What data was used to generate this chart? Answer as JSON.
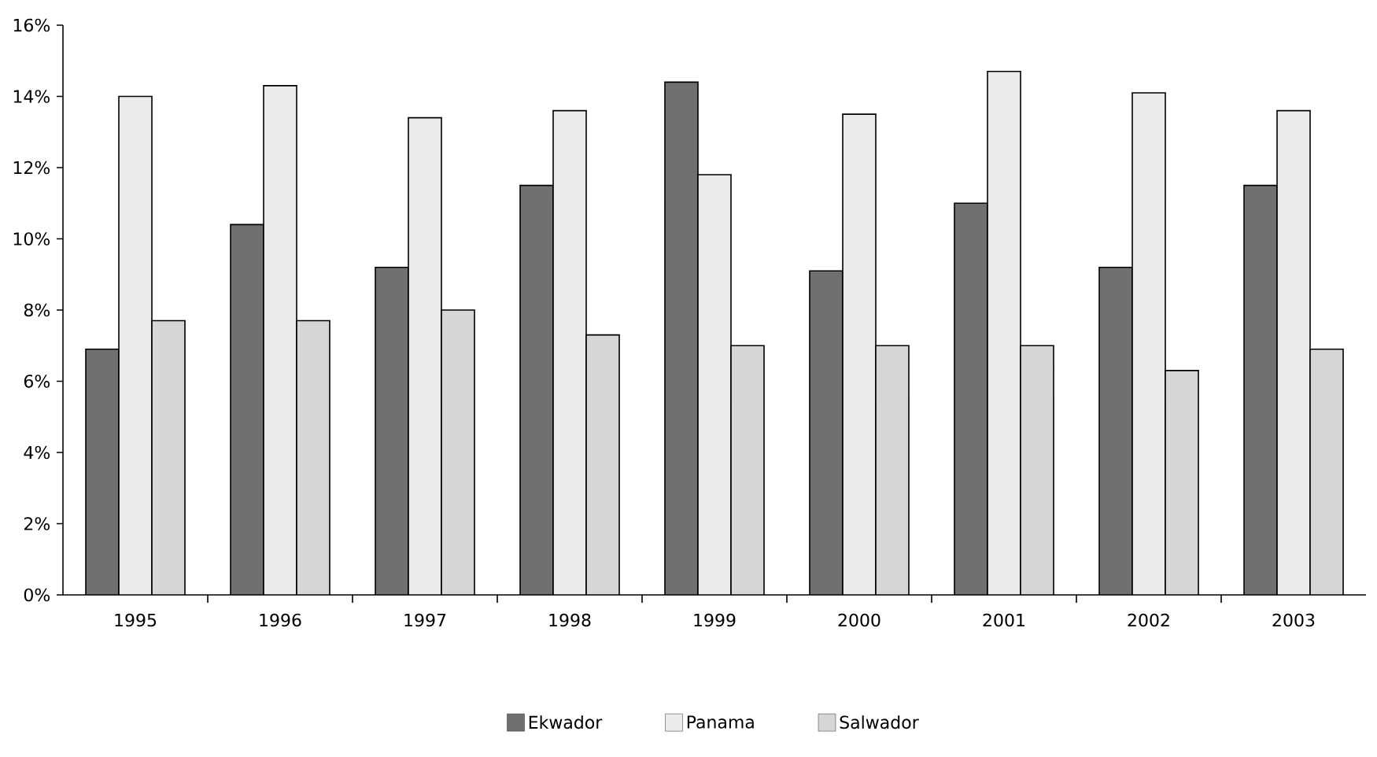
{
  "chart_data": {
    "type": "bar",
    "categories": [
      "1995",
      "1996",
      "1997",
      "1998",
      "1999",
      "2000",
      "2001",
      "2002",
      "2003"
    ],
    "series": [
      {
        "name": "Ekwador",
        "color": "#707070",
        "values": [
          6.9,
          10.4,
          9.2,
          11.5,
          14.4,
          9.1,
          11.0,
          9.2,
          11.5
        ]
      },
      {
        "name": "Panama",
        "color": "#ebebeb",
        "values": [
          14.0,
          14.3,
          13.4,
          13.6,
          11.8,
          13.5,
          14.7,
          14.1,
          13.6
        ]
      },
      {
        "name": "Salwador",
        "color": "#d6d6d6",
        "values": [
          7.7,
          7.7,
          8.0,
          7.3,
          7.0,
          7.0,
          7.0,
          6.3,
          6.9
        ]
      }
    ],
    "ylim": [
      0,
      16
    ],
    "yticks": [
      {
        "value": 0,
        "label": "0%"
      },
      {
        "value": 2,
        "label": "2%"
      },
      {
        "value": 4,
        "label": "4%"
      },
      {
        "value": 6,
        "label": "6%"
      },
      {
        "value": 8,
        "label": "8%"
      },
      {
        "value": 10,
        "label": "10%"
      },
      {
        "value": 12,
        "label": "12%"
      },
      {
        "value": 14,
        "label": "14%"
      },
      {
        "value": 16,
        "label": "16%"
      }
    ],
    "grid": false,
    "legend": "bottom"
  }
}
